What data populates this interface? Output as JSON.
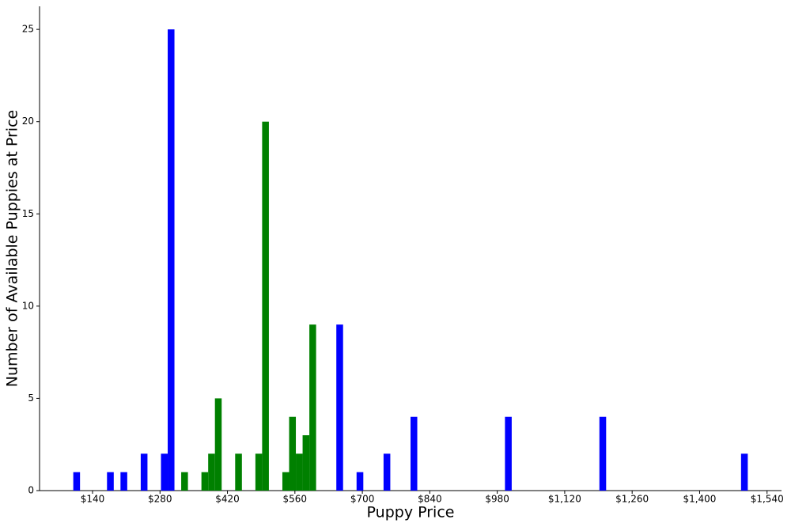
{
  "chart_data": {
    "type": "histogram",
    "xlabel": "Puppy Price",
    "ylabel": "Number of Available Puppies at Price",
    "bins": [
      100,
      114,
      128,
      142,
      156,
      170,
      184,
      198,
      212,
      226,
      240,
      254,
      268,
      282,
      296,
      310,
      324,
      338,
      352,
      366,
      380,
      394,
      408,
      422,
      436,
      450,
      464,
      478,
      492,
      506,
      520,
      534,
      548,
      562,
      576,
      590,
      604,
      618,
      632,
      646,
      660,
      674,
      688,
      702,
      716,
      730,
      744,
      758,
      772,
      786,
      800,
      814,
      828,
      842,
      856,
      870,
      884,
      898,
      912,
      926,
      940,
      954,
      968,
      982,
      996,
      1010,
      1024,
      1038,
      1052,
      1066,
      1080,
      1094,
      1108,
      1122,
      1136,
      1150,
      1164,
      1178,
      1192,
      1206,
      1220,
      1234,
      1248,
      1262,
      1276,
      1290,
      1304,
      1318,
      1332,
      1346,
      1360,
      1374,
      1388,
      1402,
      1416,
      1430,
      1444,
      1458,
      1472,
      1486,
      1500
    ],
    "counts": [
      1,
      0,
      0,
      0,
      0,
      1,
      0,
      1,
      0,
      0,
      2,
      0,
      0,
      2,
      25,
      0,
      1,
      0,
      0,
      1,
      2,
      5,
      0,
      0,
      2,
      0,
      0,
      2,
      20,
      0,
      0,
      1,
      4,
      2,
      3,
      9,
      0,
      0,
      0,
      9,
      0,
      0,
      1,
      0,
      0,
      0,
      2,
      0,
      0,
      0,
      4,
      0,
      0,
      0,
      0,
      0,
      0,
      0,
      0,
      0,
      0,
      0,
      0,
      0,
      4,
      0,
      0,
      0,
      0,
      0,
      0,
      0,
      0,
      0,
      0,
      0,
      0,
      0,
      4,
      0,
      0,
      0,
      0,
      0,
      0,
      0,
      0,
      0,
      0,
      0,
      0,
      0,
      0,
      0,
      0,
      0,
      0,
      0,
      0,
      2
    ],
    "colors": [
      "blue",
      "blue",
      "blue",
      "blue",
      "blue",
      "blue",
      "blue",
      "blue",
      "blue",
      "blue",
      "blue",
      "blue",
      "blue",
      "blue",
      "blue",
      "blue",
      "green",
      "green",
      "green",
      "green",
      "green",
      "green",
      "green",
      "green",
      "green",
      "green",
      "green",
      "green",
      "green",
      "green",
      "green",
      "green",
      "green",
      "green",
      "green",
      "green",
      "blue",
      "blue",
      "blue",
      "blue",
      "blue",
      "blue",
      "blue",
      "blue",
      "blue",
      "blue",
      "blue",
      "blue",
      "blue",
      "blue",
      "blue",
      "blue",
      "blue",
      "blue",
      "blue",
      "blue",
      "blue",
      "blue",
      "blue",
      "blue",
      "blue",
      "blue",
      "blue",
      "blue",
      "blue",
      "blue",
      "blue",
      "blue",
      "blue",
      "blue",
      "blue",
      "blue",
      "blue",
      "blue",
      "blue",
      "blue",
      "blue",
      "blue",
      "blue",
      "blue",
      "blue",
      "blue",
      "blue",
      "blue",
      "blue",
      "blue",
      "blue",
      "blue",
      "blue",
      "blue",
      "blue",
      "blue",
      "blue",
      "blue",
      "blue",
      "blue",
      "blue",
      "blue",
      "blue",
      "blue"
    ],
    "xlim": [
      30,
      1570
    ],
    "ylim": [
      0,
      26.25
    ],
    "xticks": [
      {
        "value": 140,
        "label": "$140"
      },
      {
        "value": 280,
        "label": "$280"
      },
      {
        "value": 420,
        "label": "$420"
      },
      {
        "value": 560,
        "label": "$560"
      },
      {
        "value": 700,
        "label": "$700"
      },
      {
        "value": 840,
        "label": "$840"
      },
      {
        "value": 980,
        "label": "$980"
      },
      {
        "value": 1120,
        "label": "$1,120"
      },
      {
        "value": 1260,
        "label": "$1,260"
      },
      {
        "value": 1400,
        "label": "$1,400"
      },
      {
        "value": 1540,
        "label": "$1,540"
      }
    ],
    "yticks": [
      0,
      5,
      10,
      15,
      20,
      25
    ],
    "grid": false
  }
}
